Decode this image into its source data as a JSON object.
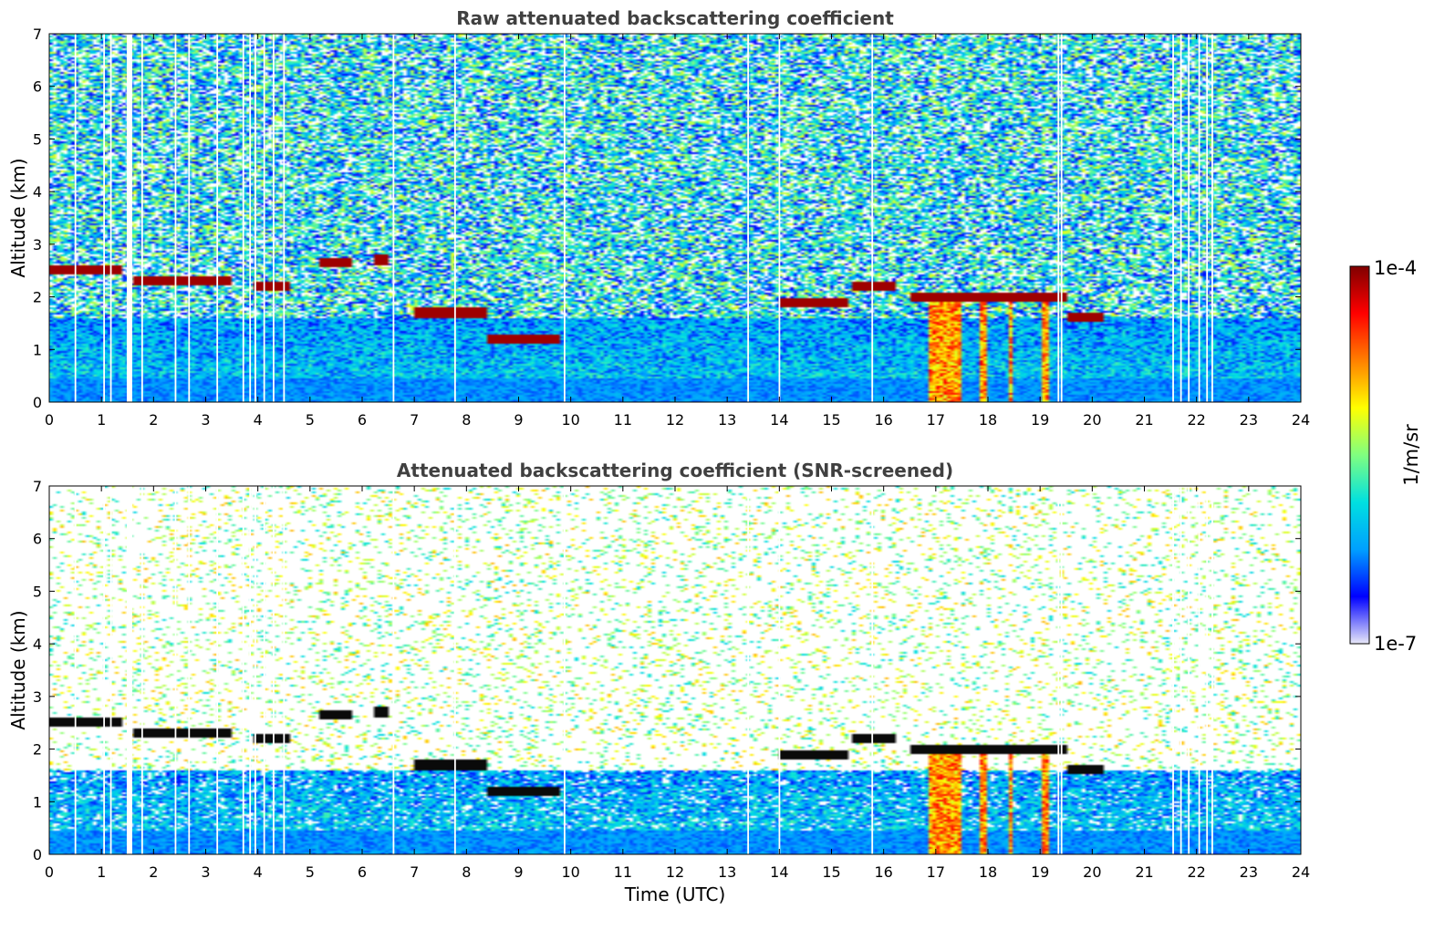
{
  "chart_data": [
    {
      "type": "heatmap",
      "title": "Raw attenuated backscattering coefficient",
      "xlabel": "",
      "ylabel": "Altitude (km)",
      "xlim": [
        0,
        24
      ],
      "ylim": [
        0,
        7
      ],
      "x_ticks": [
        "0",
        "1",
        "2",
        "3",
        "4",
        "5",
        "6",
        "7",
        "8",
        "9",
        "10",
        "11",
        "12",
        "13",
        "14",
        "15",
        "16",
        "17",
        "18",
        "19",
        "20",
        "21",
        "22",
        "23",
        "24"
      ],
      "y_ticks": [
        "0",
        "1",
        "2",
        "3",
        "4",
        "5",
        "6",
        "7"
      ],
      "screened": false
    },
    {
      "type": "heatmap",
      "title": "Attenuated backscattering coefficient (SNR-screened)",
      "xlabel": "Time (UTC)",
      "ylabel": "Altitude (km)",
      "xlim": [
        0,
        24
      ],
      "ylim": [
        0,
        7
      ],
      "x_ticks": [
        "0",
        "1",
        "2",
        "3",
        "4",
        "5",
        "6",
        "7",
        "8",
        "9",
        "10",
        "11",
        "12",
        "13",
        "14",
        "15",
        "16",
        "17",
        "18",
        "19",
        "20",
        "21",
        "22",
        "23",
        "24"
      ],
      "y_ticks": [
        "0",
        "1",
        "2",
        "3",
        "4",
        "5",
        "6",
        "7"
      ],
      "screened": true
    }
  ],
  "colorbar": {
    "label": "1/m/sr",
    "max_label": "1e-4",
    "min_label": "1e-7",
    "scale": "log",
    "colormap": [
      "#e8e8f8",
      "#0000ff",
      "#00a0ff",
      "#00e0e0",
      "#80ff80",
      "#ffff00",
      "#ff8000",
      "#ff0000",
      "#800000"
    ]
  },
  "features": {
    "cloud_layer_km": [
      {
        "t0": 0.0,
        "t1": 1.4,
        "alt": 2.5
      },
      {
        "t0": 1.6,
        "t1": 3.5,
        "alt": 2.3
      },
      {
        "t0": 3.9,
        "t1": 4.6,
        "alt": 2.2
      },
      {
        "t0": 5.2,
        "t1": 5.8,
        "alt": 2.65
      },
      {
        "t0": 6.2,
        "t1": 6.5,
        "alt": 2.7
      },
      {
        "t0": 7.0,
        "t1": 8.4,
        "alt": 1.7
      },
      {
        "t0": 8.4,
        "t1": 9.8,
        "alt": 1.2
      },
      {
        "t0": 14.0,
        "t1": 15.3,
        "alt": 1.9
      },
      {
        "t0": 15.4,
        "t1": 16.2,
        "alt": 2.2
      },
      {
        "t0": 16.5,
        "t1": 19.5,
        "alt": 2.0
      },
      {
        "t0": 19.5,
        "t1": 20.2,
        "alt": 1.6
      }
    ],
    "precipitation_t": [
      [
        16.85,
        17.5
      ],
      [
        17.85,
        18.0
      ],
      [
        18.4,
        18.5
      ],
      [
        19.0,
        19.2
      ]
    ],
    "missing_t": [
      0.5,
      1.05,
      1.18,
      1.5,
      1.78,
      2.42,
      2.68,
      3.22,
      3.72,
      3.85,
      3.95,
      4.12,
      4.3,
      4.5,
      6.6,
      7.78,
      9.88,
      13.4,
      14.0,
      15.78,
      19.35,
      19.41,
      21.55,
      21.7,
      21.85,
      22.05,
      22.2,
      22.3
    ]
  }
}
